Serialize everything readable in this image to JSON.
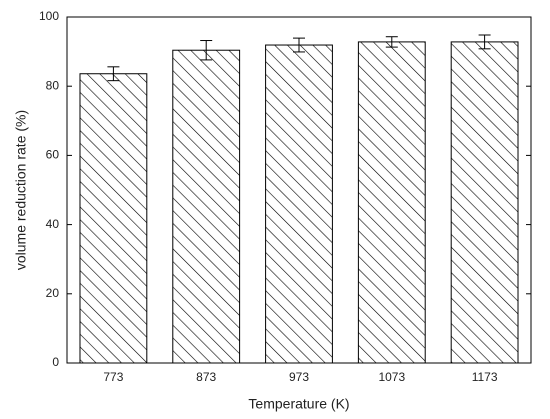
{
  "chart_data": {
    "type": "bar",
    "x_label": "Temperature (K)",
    "y_label": "volume reduction rate (%)",
    "categories": [
      "773",
      "873",
      "973",
      "1073",
      "1173"
    ],
    "series": [
      {
        "values": [
          83.6,
          90.4,
          91.9,
          92.8,
          92.8
        ],
        "errors": [
          2.0,
          2.8,
          2.0,
          1.5,
          2.0
        ],
        "color": "#000000"
      }
    ],
    "ylim": [
      0,
      100
    ],
    "yticks": [
      0,
      20,
      40,
      60,
      80,
      100
    ]
  }
}
